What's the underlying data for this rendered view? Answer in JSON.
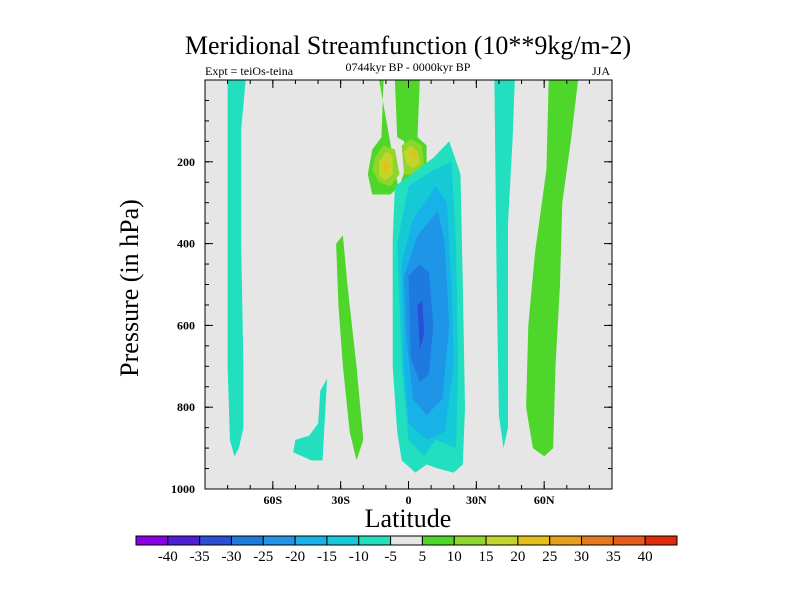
{
  "chart_data": {
    "type": "contour",
    "title": "Meridional Streamfunction (10**9kg/m-2)",
    "left_label": "Expt = teiOs-teina",
    "center_label": "0744kyr BP - 0000kyr BP",
    "right_label": "JJA",
    "xlabel": "Latitude",
    "ylabel": "Pressure (in hPa)",
    "xlim": [
      -90,
      90
    ],
    "ylim": [
      1000,
      0
    ],
    "x_ticks": [
      {
        "value": -60,
        "label": "60S"
      },
      {
        "value": -30,
        "label": "30S"
      },
      {
        "value": 0,
        "label": "0"
      },
      {
        "value": 30,
        "label": "30N"
      },
      {
        "value": 60,
        "label": "60N"
      }
    ],
    "y_ticks": [
      {
        "value": 200,
        "label": "200"
      },
      {
        "value": 400,
        "label": "400"
      },
      {
        "value": 600,
        "label": "600"
      },
      {
        "value": 800,
        "label": "800"
      },
      {
        "value": 1000,
        "label": "1000"
      }
    ],
    "zero_band_color": "#e6e6e6",
    "colorbar": {
      "levels": [
        "-40",
        "-35",
        "-30",
        "-25",
        "-20",
        "-15",
        "-10",
        "-5",
        "5",
        "10",
        "15",
        "20",
        "25",
        "30",
        "35",
        "40"
      ],
      "colors": [
        "#8a00e6",
        "#4f1ed6",
        "#2a4fd6",
        "#1f7ae0",
        "#1f95e8",
        "#17b2e8",
        "#16c9d6",
        "#22e0bf",
        "#e6e6e6",
        "#4fd62a",
        "#8ed62a",
        "#c2d62a",
        "#e3c11a",
        "#e6a01a",
        "#e67a1a",
        "#e65a1a",
        "#e02a0a"
      ]
    },
    "regions": [
      {
        "level": -5,
        "points": [
          [
            -80,
            0
          ],
          [
            -72,
            0
          ],
          [
            -74,
            120
          ],
          [
            -74,
            400
          ],
          [
            -73,
            700
          ],
          [
            -73,
            850
          ],
          [
            -75,
            900
          ],
          [
            -77,
            920
          ],
          [
            -79,
            880
          ],
          [
            -80,
            700
          ]
        ]
      },
      {
        "level": 5,
        "points": [
          [
            -13,
            0
          ],
          [
            -11,
            0
          ],
          [
            -12,
            140
          ],
          [
            -16,
            170
          ],
          [
            -18,
            230
          ],
          [
            -16,
            280
          ],
          [
            -8,
            280
          ],
          [
            -4,
            260
          ],
          [
            -1,
            210
          ],
          [
            -2,
            150
          ],
          [
            -5,
            140
          ],
          [
            -6,
            0
          ],
          [
            3,
            0
          ],
          [
            5,
            0
          ],
          [
            4,
            140
          ],
          [
            8,
            160
          ],
          [
            8,
            230
          ],
          [
            5,
            260
          ],
          [
            -1,
            270
          ],
          [
            -4,
            280
          ]
        ]
      },
      {
        "level": 10,
        "points": [
          [
            -15,
            190
          ],
          [
            -11,
            160
          ],
          [
            -6,
            170
          ],
          [
            -4,
            230
          ],
          [
            -8,
            260
          ],
          [
            -13,
            250
          ],
          [
            -16,
            220
          ]
        ]
      },
      {
        "level": 15,
        "points": [
          [
            -13,
            200
          ],
          [
            -10,
            175
          ],
          [
            -7,
            185
          ],
          [
            -7,
            230
          ],
          [
            -10,
            245
          ],
          [
            -13,
            235
          ]
        ]
      },
      {
        "level": 10,
        "points": [
          [
            -3,
            160
          ],
          [
            1,
            145
          ],
          [
            6,
            160
          ],
          [
            7,
            210
          ],
          [
            3,
            235
          ],
          [
            -2,
            230
          ]
        ]
      },
      {
        "level": 15,
        "points": [
          [
            -2,
            175
          ],
          [
            1,
            160
          ],
          [
            4,
            175
          ],
          [
            5,
            205
          ],
          [
            2,
            215
          ],
          [
            -1,
            205
          ]
        ]
      },
      {
        "level": 20,
        "points": [
          [
            -12,
            210
          ],
          [
            -10,
            195
          ],
          [
            -8,
            210
          ],
          [
            -10,
            230
          ]
        ]
      },
      {
        "level": 20,
        "points": [
          [
            1,
            175
          ],
          [
            3,
            170
          ],
          [
            4,
            185
          ],
          [
            2,
            195
          ]
        ]
      },
      {
        "level": 5,
        "points": [
          [
            -32,
            400
          ],
          [
            -29,
            380
          ],
          [
            -27,
            500
          ],
          [
            -23,
            700
          ],
          [
            -20,
            880
          ],
          [
            -23,
            930
          ],
          [
            -26,
            860
          ],
          [
            -29,
            700
          ],
          [
            -31,
            550
          ]
        ]
      },
      {
        "level": -5,
        "points": [
          [
            -39,
            760
          ],
          [
            -36,
            730
          ],
          [
            -37,
            830
          ],
          [
            -38,
            930
          ],
          [
            -43,
            930
          ],
          [
            -51,
            910
          ],
          [
            -50,
            880
          ],
          [
            -44,
            870
          ],
          [
            -40,
            840
          ]
        ]
      },
      {
        "level": -5,
        "points": [
          [
            -7,
            390
          ],
          [
            -6,
            260
          ],
          [
            -1,
            240
          ],
          [
            11,
            190
          ],
          [
            18,
            150
          ],
          [
            23,
            230
          ],
          [
            24,
            500
          ],
          [
            25,
            800
          ],
          [
            24,
            940
          ],
          [
            20,
            960
          ],
          [
            13,
            950
          ],
          [
            8,
            940
          ],
          [
            3,
            960
          ],
          [
            -3,
            930
          ],
          [
            -5,
            860
          ],
          [
            -7,
            700
          ]
        ]
      },
      {
        "level": -10,
        "points": [
          [
            -5,
            400
          ],
          [
            0,
            260
          ],
          [
            11,
            220
          ],
          [
            19,
            200
          ],
          [
            21,
            400
          ],
          [
            22,
            700
          ],
          [
            21,
            900
          ],
          [
            12,
            880
          ],
          [
            7,
            920
          ],
          [
            0,
            880
          ],
          [
            -3,
            700
          ]
        ]
      },
      {
        "level": -15,
        "points": [
          [
            -3,
            450
          ],
          [
            2,
            340
          ],
          [
            12,
            260
          ],
          [
            17,
            300
          ],
          [
            19,
            500
          ],
          [
            20,
            700
          ],
          [
            16,
            860
          ],
          [
            8,
            880
          ],
          [
            0,
            840
          ],
          [
            -2,
            700
          ]
        ]
      },
      {
        "level": -20,
        "points": [
          [
            -2,
            480
          ],
          [
            4,
            380
          ],
          [
            13,
            320
          ],
          [
            16,
            400
          ],
          [
            18,
            600
          ],
          [
            15,
            780
          ],
          [
            8,
            820
          ],
          [
            2,
            780
          ],
          [
            -1,
            620
          ]
        ]
      },
      {
        "level": -25,
        "points": [
          [
            0,
            480
          ],
          [
            5,
            450
          ],
          [
            9,
            470
          ],
          [
            11,
            600
          ],
          [
            9,
            720
          ],
          [
            5,
            740
          ],
          [
            1,
            680
          ]
        ]
      },
      {
        "level": -30,
        "points": [
          [
            4,
            550
          ],
          [
            6,
            540
          ],
          [
            7,
            620
          ],
          [
            5,
            660
          ]
        ]
      },
      {
        "level": -5,
        "points": [
          [
            38,
            0
          ],
          [
            47,
            0
          ],
          [
            46,
            150
          ],
          [
            44,
            350
          ],
          [
            44,
            600
          ],
          [
            44,
            850
          ],
          [
            42,
            900
          ],
          [
            40,
            820
          ],
          [
            39,
            500
          ]
        ]
      },
      {
        "level": 5,
        "points": [
          [
            62,
            0
          ],
          [
            75,
            0
          ],
          [
            72,
            140
          ],
          [
            68,
            300
          ],
          [
            67,
            500
          ],
          [
            65,
            700
          ],
          [
            64,
            900
          ],
          [
            60,
            920
          ],
          [
            55,
            900
          ],
          [
            52,
            800
          ],
          [
            53,
            600
          ],
          [
            56,
            420
          ],
          [
            61,
            220
          ]
        ]
      }
    ]
  }
}
